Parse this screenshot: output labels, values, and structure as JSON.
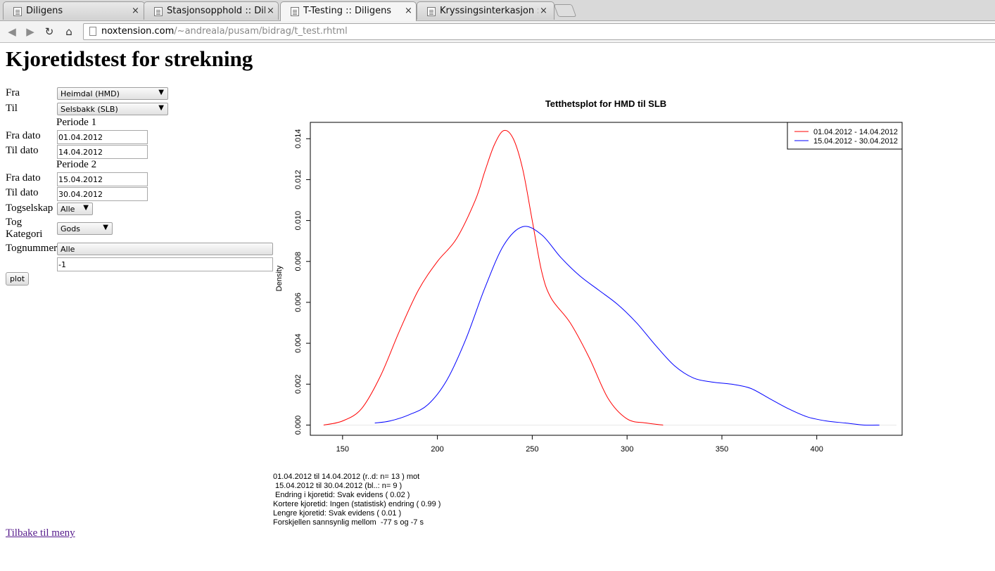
{
  "browser": {
    "tabs": [
      {
        "title": "Diligens",
        "active": false
      },
      {
        "title": "Stasjonsopphold :: Dilig",
        "active": false
      },
      {
        "title": "T-Testing :: Diligens",
        "active": true
      },
      {
        "title": "Kryssingsinterkasjon ::",
        "active": false
      }
    ],
    "tab_close_glyph": "×",
    "url_host": "noxtension.com",
    "url_path": "/~andreala/pusam/bidrag/t_test.rhtml"
  },
  "page": {
    "title": "Kjoretidstest for strekning",
    "form": {
      "fra_label": "Fra",
      "fra_value": "Heimdal (HMD)",
      "til_label": "Til",
      "til_value": "Selsbakk (SLB)",
      "periode1_label": "Periode 1",
      "p1_fra_label": "Fra dato",
      "p1_fra_value": "01.04.2012",
      "p1_til_label": "Til dato",
      "p1_til_value": "14.04.2012",
      "periode2_label": "Periode 2",
      "p2_fra_label": "Fra dato",
      "p2_fra_value": "15.04.2012",
      "p2_til_label": "Til dato",
      "p2_til_value": "30.04.2012",
      "togselskap_label": "Togselskap",
      "togselskap_value": "Alle",
      "kategori_label_1": "Tog",
      "kategori_label_2": "Kategori",
      "kategori_value": "Gods",
      "tognummer_label": "Tognummer",
      "tognummer_value": "Alle",
      "tognummer_input": "-1",
      "plot_button": "plot"
    },
    "results": [
      "01.04.2012 til 14.04.2012 (r..d: n= 13 ) mot",
      " 15.04.2012 til 30.04.2012 (bl..: n= 9 )",
      " Endring i kjoretid: Svak evidens ( 0.02 )",
      "Kortere kjoretid: Ingen (statistisk) endring ( 0.99 )",
      "Lengre kjoretid: Svak evidens ( 0.01 )",
      "Forskjellen sannsynlig mellom  -77 s og -7 s"
    ],
    "back_link": "Tilbake til meny"
  },
  "chart_data": {
    "type": "line",
    "title": "Tetthetsplot for  HMD  til  SLB",
    "xlabel": "",
    "ylabel": "Density",
    "xlim": [
      133,
      445
    ],
    "ylim": [
      -0.0005,
      0.0148
    ],
    "x_ticks": [
      150,
      200,
      250,
      300,
      350,
      400
    ],
    "y_ticks": [
      0.0,
      0.002,
      0.004,
      0.006,
      0.008,
      0.01,
      0.012,
      0.014
    ],
    "y_tick_labels": [
      "0.000",
      "0.002",
      "0.004",
      "0.006",
      "0.008",
      "0.010",
      "0.012",
      "0.014"
    ],
    "grid": false,
    "legend_position": "top-right",
    "series": [
      {
        "name": "01.04.2012 - 14.04.2012",
        "color": "#ff0000",
        "x": [
          140,
          150,
          160,
          170,
          180,
          190,
          200,
          210,
          220,
          225,
          230,
          235,
          240,
          245,
          250,
          255,
          260,
          270,
          280,
          290,
          300,
          310,
          319
        ],
        "y": [
          0.0,
          0.0002,
          0.0008,
          0.0024,
          0.0046,
          0.0066,
          0.008,
          0.0091,
          0.011,
          0.0124,
          0.0137,
          0.0144,
          0.014,
          0.0125,
          0.01,
          0.0075,
          0.0062,
          0.005,
          0.0033,
          0.0013,
          0.0003,
          0.0001,
          0.0
        ]
      },
      {
        "name": "15.04.2012 - 30.04.2012",
        "color": "#0000ff",
        "x": [
          167,
          175,
          185,
          195,
          205,
          215,
          225,
          235,
          245,
          255,
          265,
          275,
          285,
          295,
          305,
          315,
          325,
          335,
          345,
          355,
          365,
          375,
          385,
          395,
          405,
          415,
          425,
          433
        ],
        "y": [
          0.0001,
          0.0002,
          0.0005,
          0.001,
          0.0022,
          0.0042,
          0.0067,
          0.0088,
          0.0097,
          0.0093,
          0.0082,
          0.0073,
          0.0066,
          0.0059,
          0.005,
          0.0039,
          0.0029,
          0.0023,
          0.0021,
          0.002,
          0.0018,
          0.0013,
          0.0008,
          0.0004,
          0.0002,
          0.0001,
          0.0,
          0.0
        ]
      }
    ]
  }
}
